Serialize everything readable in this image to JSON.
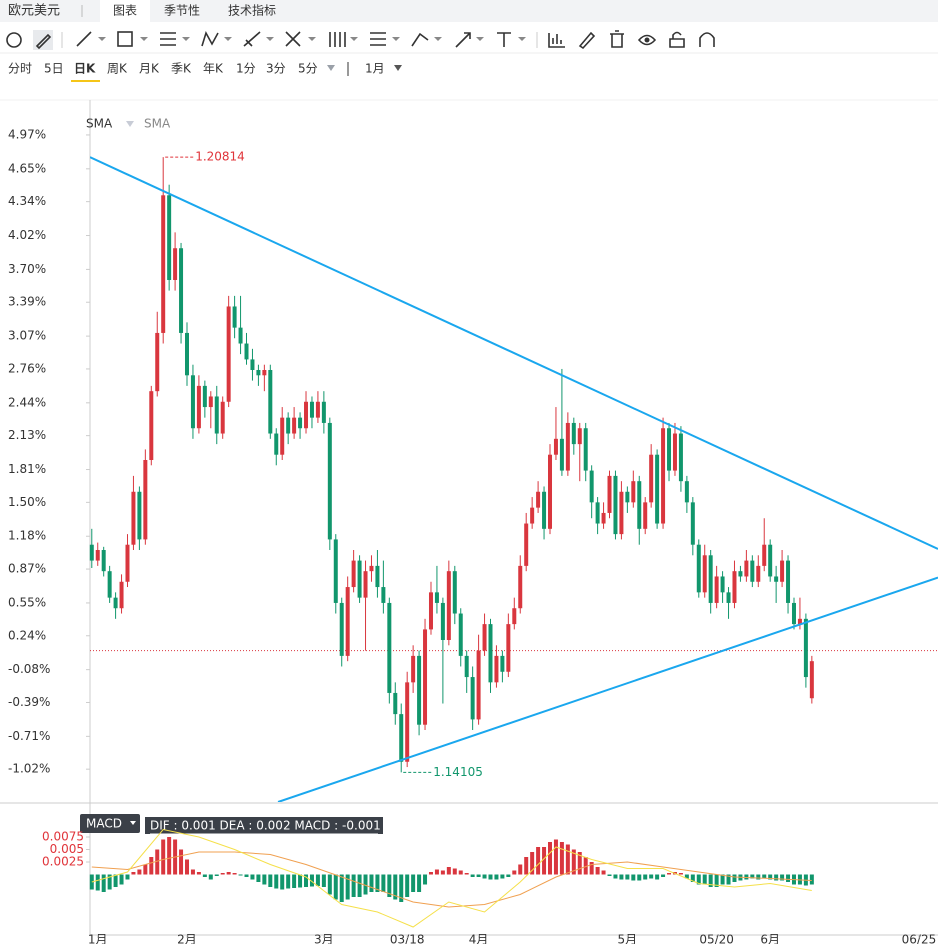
{
  "header": {
    "symbol": "欧元美元",
    "tabs": [
      "图表",
      "季节性",
      "技术指标"
    ]
  },
  "periods": [
    "分时",
    "5日",
    "日K",
    "周K",
    "月K",
    "季K",
    "年K",
    "1分",
    "3分",
    "5分"
  ],
  "range": "1月",
  "chart_data": {
    "type": "candlestick",
    "indicators": [
      "SMA",
      "SMA"
    ],
    "up_color": "#d9363e",
    "down_color": "#11966c",
    "xlim": [
      -0.3,
      142.2
    ],
    "xticks": [
      {
        "value": 1,
        "label": "1月"
      },
      {
        "value": 16,
        "label": "2月"
      },
      {
        "value": 39,
        "label": "3月"
      },
      {
        "value": 53,
        "label": "03/18"
      },
      {
        "value": 65,
        "label": "4月"
      },
      {
        "value": 90,
        "label": "5月"
      },
      {
        "value": 105,
        "label": "05/20"
      },
      {
        "value": 114,
        "label": "6月"
      },
      {
        "value": 139,
        "label": "06/25"
      }
    ],
    "ylim": [
      -1.33,
      5.3
    ],
    "yticks": [
      {
        "value": 4.97,
        "label": "4.97%"
      },
      {
        "value": 4.65,
        "label": "4.65%"
      },
      {
        "value": 4.34,
        "label": "4.34%"
      },
      {
        "value": 4.02,
        "label": "4.02%"
      },
      {
        "value": 3.7,
        "label": "3.70%"
      },
      {
        "value": 3.39,
        "label": "3.39%"
      },
      {
        "value": 3.07,
        "label": "3.07%"
      },
      {
        "value": 2.76,
        "label": "2.76%"
      },
      {
        "value": 2.44,
        "label": "2.44%"
      },
      {
        "value": 2.13,
        "label": "2.13%"
      },
      {
        "value": 1.81,
        "label": "1.81%"
      },
      {
        "value": 1.5,
        "label": "1.50%"
      },
      {
        "value": 1.18,
        "label": "1.18%"
      },
      {
        "value": 0.87,
        "label": "0.87%"
      },
      {
        "value": 0.55,
        "label": "0.55%"
      },
      {
        "value": 0.24,
        "label": "0.24%"
      },
      {
        "value": -0.08,
        "label": "-0.08%"
      },
      {
        "value": -0.39,
        "label": "-0.39%"
      },
      {
        "value": -0.71,
        "label": "-0.71%"
      },
      {
        "value": -1.02,
        "label": "-1.02%"
      }
    ],
    "candles": [
      [
        1.1,
        1.25,
        0.88,
        0.95
      ],
      [
        0.95,
        1.12,
        0.9,
        1.05
      ],
      [
        1.05,
        1.08,
        0.8,
        0.85
      ],
      [
        0.85,
        0.9,
        0.55,
        0.6
      ],
      [
        0.6,
        0.65,
        0.4,
        0.5
      ],
      [
        0.5,
        0.82,
        0.45,
        0.75
      ],
      [
        0.75,
        1.2,
        0.7,
        1.1
      ],
      [
        1.1,
        1.75,
        1.05,
        1.6
      ],
      [
        1.6,
        1.65,
        1.05,
        1.15
      ],
      [
        1.15,
        2.0,
        1.1,
        1.9
      ],
      [
        1.9,
        2.6,
        1.85,
        2.55
      ],
      [
        2.55,
        3.3,
        2.5,
        3.1
      ],
      [
        3.1,
        4.76,
        3.0,
        4.4
      ],
      [
        4.4,
        4.5,
        3.5,
        3.6
      ],
      [
        3.6,
        4.05,
        3.5,
        3.9
      ],
      [
        3.9,
        3.95,
        3.0,
        3.1
      ],
      [
        3.1,
        3.2,
        2.6,
        2.7
      ],
      [
        2.7,
        2.8,
        2.1,
        2.2
      ],
      [
        2.2,
        2.7,
        2.15,
        2.6
      ],
      [
        2.6,
        2.65,
        2.3,
        2.4
      ],
      [
        2.4,
        2.55,
        2.2,
        2.5
      ],
      [
        2.5,
        2.6,
        2.05,
        2.15
      ],
      [
        2.15,
        2.5,
        2.1,
        2.45
      ],
      [
        2.45,
        3.45,
        2.4,
        3.35
      ],
      [
        3.35,
        3.45,
        3.05,
        3.15
      ],
      [
        3.15,
        3.45,
        2.9,
        3.0
      ],
      [
        3.0,
        3.1,
        2.8,
        2.85
      ],
      [
        2.85,
        2.95,
        2.65,
        2.75
      ],
      [
        2.75,
        2.8,
        2.6,
        2.7
      ],
      [
        2.7,
        2.8,
        2.55,
        2.75
      ],
      [
        2.75,
        2.8,
        2.1,
        2.15
      ],
      [
        2.15,
        2.2,
        1.85,
        1.95
      ],
      [
        1.95,
        2.4,
        1.9,
        2.3
      ],
      [
        2.3,
        2.35,
        2.05,
        2.15
      ],
      [
        2.15,
        2.4,
        2.1,
        2.3
      ],
      [
        2.3,
        2.35,
        2.1,
        2.2
      ],
      [
        2.2,
        2.55,
        2.15,
        2.45
      ],
      [
        2.45,
        2.5,
        2.2,
        2.3
      ],
      [
        2.3,
        2.55,
        2.25,
        2.45
      ],
      [
        2.45,
        2.55,
        2.15,
        2.25
      ],
      [
        2.25,
        2.3,
        1.05,
        1.15
      ],
      [
        1.15,
        1.2,
        0.45,
        0.55
      ],
      [
        0.55,
        0.6,
        -0.05,
        0.05
      ],
      [
        0.05,
        0.8,
        0.0,
        0.7
      ],
      [
        0.7,
        1.05,
        0.65,
        0.95
      ],
      [
        0.95,
        1.0,
        0.55,
        0.6
      ],
      [
        0.6,
        0.95,
        0.1,
        0.85
      ],
      [
        0.85,
        1.0,
        0.75,
        0.9
      ],
      [
        0.9,
        1.05,
        0.6,
        0.7
      ],
      [
        0.7,
        0.95,
        0.45,
        0.55
      ],
      [
        0.55,
        0.6,
        -0.4,
        -0.3
      ],
      [
        -0.3,
        -0.2,
        -0.6,
        -0.5
      ],
      [
        -0.5,
        -0.4,
        -1.05,
        -0.95
      ],
      [
        -0.95,
        -0.1,
        -1.0,
        -0.2
      ],
      [
        -0.2,
        0.15,
        -0.3,
        0.05
      ],
      [
        0.05,
        0.1,
        -0.7,
        -0.6
      ],
      [
        -0.6,
        0.4,
        -0.65,
        0.3
      ],
      [
        0.3,
        0.75,
        0.25,
        0.65
      ],
      [
        0.65,
        0.9,
        0.45,
        0.55
      ],
      [
        0.55,
        0.6,
        -0.4,
        0.2
      ],
      [
        0.2,
        0.95,
        0.15,
        0.85
      ],
      [
        0.85,
        0.9,
        0.35,
        0.45
      ],
      [
        0.45,
        0.5,
        -0.05,
        0.05
      ],
      [
        0.05,
        0.1,
        -0.3,
        -0.15
      ],
      [
        -0.15,
        -0.05,
        -0.65,
        -0.55
      ],
      [
        -0.55,
        0.25,
        -0.6,
        0.1
      ],
      [
        0.1,
        0.45,
        0.05,
        0.35
      ],
      [
        0.35,
        0.4,
        -0.3,
        -0.2
      ],
      [
        -0.2,
        0.15,
        -0.25,
        0.05
      ],
      [
        0.05,
        0.1,
        -0.2,
        -0.1
      ],
      [
        -0.1,
        0.45,
        -0.15,
        0.35
      ],
      [
        0.35,
        0.6,
        0.3,
        0.5
      ],
      [
        0.5,
        1.0,
        0.45,
        0.9
      ],
      [
        0.9,
        1.4,
        0.85,
        1.3
      ],
      [
        1.3,
        1.55,
        1.25,
        1.45
      ],
      [
        1.45,
        1.7,
        1.4,
        1.6
      ],
      [
        1.6,
        1.65,
        1.15,
        1.25
      ],
      [
        1.25,
        2.05,
        1.2,
        1.95
      ],
      [
        1.95,
        2.4,
        1.9,
        2.1
      ],
      [
        2.1,
        2.76,
        1.75,
        1.8
      ],
      [
        1.8,
        2.35,
        1.75,
        2.25
      ],
      [
        2.25,
        2.3,
        1.95,
        2.05
      ],
      [
        2.05,
        2.25,
        1.7,
        2.2
      ],
      [
        2.2,
        2.25,
        1.7,
        1.8
      ],
      [
        1.8,
        1.85,
        1.35,
        1.5
      ],
      [
        1.5,
        1.55,
        1.2,
        1.3
      ],
      [
        1.3,
        1.5,
        1.25,
        1.4
      ],
      [
        1.4,
        1.8,
        1.35,
        1.75
      ],
      [
        1.75,
        1.8,
        1.15,
        1.2
      ],
      [
        1.2,
        1.7,
        1.15,
        1.6
      ],
      [
        1.6,
        1.65,
        1.4,
        1.5
      ],
      [
        1.5,
        1.8,
        1.45,
        1.7
      ],
      [
        1.7,
        1.75,
        1.1,
        1.25
      ],
      [
        1.25,
        1.55,
        1.2,
        1.5
      ],
      [
        1.5,
        2.05,
        1.45,
        1.95
      ],
      [
        1.95,
        2.0,
        1.25,
        1.3
      ],
      [
        1.3,
        2.3,
        1.25,
        2.2
      ],
      [
        2.2,
        2.25,
        1.7,
        1.8
      ],
      [
        1.8,
        2.25,
        1.75,
        2.15
      ],
      [
        2.15,
        2.22,
        1.6,
        1.7
      ],
      [
        1.7,
        1.75,
        1.4,
        1.5
      ],
      [
        1.5,
        1.55,
        1.0,
        1.1
      ],
      [
        1.1,
        1.15,
        0.6,
        0.65
      ],
      [
        0.65,
        1.1,
        0.6,
        1.0
      ],
      [
        1.0,
        1.05,
        0.45,
        0.55
      ],
      [
        0.55,
        0.9,
        0.5,
        0.8
      ],
      [
        0.8,
        0.85,
        0.55,
        0.65
      ],
      [
        0.65,
        0.7,
        0.4,
        0.55
      ],
      [
        0.55,
        0.95,
        0.5,
        0.85
      ],
      [
        0.85,
        0.9,
        0.75,
        0.8
      ],
      [
        0.8,
        1.05,
        0.75,
        0.95
      ],
      [
        0.95,
        1.0,
        0.7,
        0.75
      ],
      [
        0.75,
        1.0,
        0.7,
        0.9
      ],
      [
        0.9,
        1.35,
        0.85,
        1.1
      ],
      [
        1.1,
        1.15,
        0.75,
        0.8
      ],
      [
        0.8,
        0.9,
        0.55,
        0.75
      ],
      [
        0.75,
        1.05,
        0.7,
        0.95
      ],
      [
        0.95,
        1.0,
        0.45,
        0.55
      ],
      [
        0.55,
        0.6,
        0.3,
        0.35
      ],
      [
        0.35,
        0.6,
        0.3,
        0.4
      ],
      [
        0.4,
        0.45,
        -0.25,
        -0.15
      ],
      [
        -0.35,
        0.05,
        -0.4,
        0.0
      ]
    ],
    "trendlines": [
      {
        "color": "#1aa7ee",
        "x": [
          -0.3,
          142.2
        ],
        "y": [
          4.76,
          1.06
        ]
      },
      {
        "color": "#1aa7ee",
        "x": [
          31.3,
          142.2
        ],
        "y": [
          -1.33,
          0.79
        ]
      }
    ],
    "annotations": [
      {
        "text": "1.20814",
        "x": 12,
        "y": 4.76,
        "color": "#e0343a"
      },
      {
        "text": "1.14105",
        "x": 52,
        "y": -1.05,
        "color": "#11966c"
      }
    ],
    "price_line": 0.1,
    "macd": {
      "label": "MACD",
      "readout": "DIF : 0.001   DEA : 0.002   MACD : -0.001",
      "ylim": [
        -0.0121,
        0.0137
      ],
      "yticks": [
        0.0075,
        0.005,
        0.0025
      ],
      "histogram": [
        -0.003,
        -0.0032,
        -0.0035,
        -0.003,
        -0.0025,
        -0.002,
        -0.001,
        0.0005,
        0.001,
        0.002,
        0.0035,
        0.005,
        0.007,
        0.0075,
        0.007,
        0.005,
        0.003,
        0.001,
        0.0005,
        -0.0005,
        -0.001,
        -0.0003,
        0.0003,
        0.0005,
        0.0003,
        -0.0002,
        -0.0005,
        -0.001,
        -0.0015,
        -0.002,
        -0.0025,
        -0.0028,
        -0.003,
        -0.0028,
        -0.0027,
        -0.0026,
        -0.0025,
        -0.0024,
        -0.0023,
        -0.0025,
        -0.004,
        -0.005,
        -0.0055,
        -0.005,
        -0.0045,
        -0.0045,
        -0.004,
        -0.0035,
        -0.0035,
        -0.0035,
        -0.0045,
        -0.005,
        -0.0055,
        -0.0045,
        -0.0035,
        -0.0035,
        -0.002,
        0.0005,
        0.001,
        0.0008,
        0.0015,
        0.0012,
        0.0008,
        0.0003,
        -0.0005,
        -0.0005,
        -0.0008,
        -0.001,
        -0.001,
        -0.0008,
        -0.0005,
        0.0008,
        0.002,
        0.0035,
        0.0045,
        0.0055,
        0.0055,
        0.0065,
        0.007,
        0.0065,
        0.006,
        0.005,
        0.0045,
        0.0035,
        0.0025,
        0.0015,
        0.0008,
        -0.0003,
        -0.0008,
        -0.001,
        -0.001,
        -0.0012,
        -0.0012,
        -0.001,
        -0.0008,
        -0.001,
        -0.0005,
        0.0003,
        0.0005,
        0.0003,
        -0.0008,
        -0.0015,
        -0.002,
        -0.002,
        -0.0025,
        -0.0025,
        -0.002,
        -0.002,
        -0.0015,
        -0.0012,
        -0.001,
        -0.0008,
        -0.001,
        -0.0008,
        -0.001,
        -0.0012,
        -0.0012,
        -0.0015,
        -0.002,
        -0.002,
        -0.0022,
        -0.002
      ],
      "lines": [
        {
          "color": "#f0a050",
          "x": [
            0,
            6,
            12,
            18,
            24,
            30,
            36,
            42,
            48,
            54,
            60,
            66,
            72,
            78,
            84,
            90,
            96,
            102,
            108,
            114,
            121
          ],
          "values": [
            0.0015,
            0.001,
            0.003,
            0.0045,
            0.0045,
            0.004,
            0.002,
            -0.0005,
            -0.003,
            -0.0055,
            -0.0065,
            -0.006,
            -0.004,
            -0.0005,
            0.002,
            0.0025,
            0.0015,
            0.0005,
            -0.0005,
            -0.0008,
            -0.0012
          ]
        },
        {
          "color": "#f5e04a",
          "x": [
            0,
            6,
            12,
            18,
            24,
            30,
            36,
            42,
            48,
            54,
            60,
            66,
            72,
            78,
            84,
            90,
            96,
            102,
            108,
            114,
            121
          ],
          "values": [
            -0.0015,
            0.0005,
            0.009,
            0.0075,
            0.005,
            0.002,
            -0.0005,
            -0.006,
            -0.0075,
            -0.0105,
            -0.0055,
            -0.0075,
            -0.0015,
            0.0055,
            0.003,
            0.0012,
            0.0012,
            -0.0018,
            -0.0025,
            -0.0018,
            -0.0032
          ]
        }
      ]
    }
  }
}
